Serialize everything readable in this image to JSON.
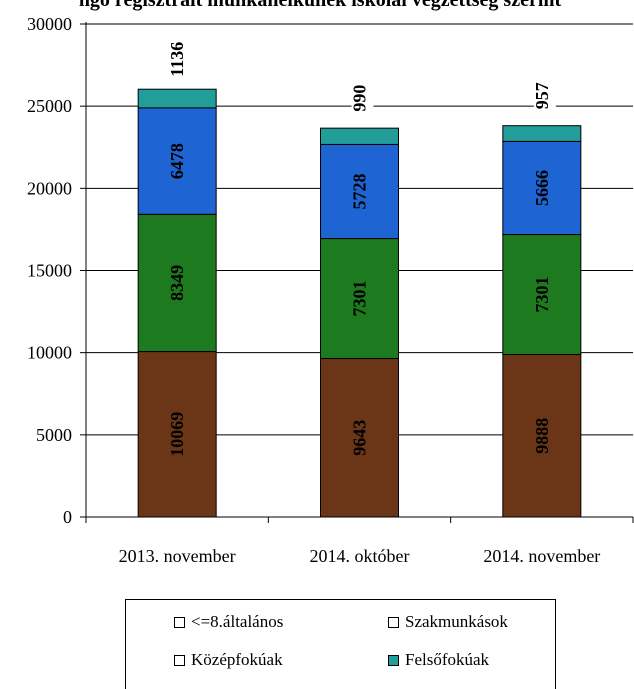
{
  "chart_data": {
    "type": "bar",
    "stacked": true,
    "title": "ngo regisztrált munkanélküliek iskolai végzettség szerint",
    "categories": [
      "2013. november",
      "2014. október",
      "2014. november"
    ],
    "series": [
      {
        "name": "<=8.általános",
        "values": [
          10069,
          9643,
          9888
        ],
        "color": "#6b3517",
        "legend_swatch": "#ffffff"
      },
      {
        "name": "Szakmunkások",
        "values": [
          8349,
          7301,
          7301
        ],
        "color": "#1e7a1e",
        "legend_swatch": "#ffffff"
      },
      {
        "name": "Középfokúak",
        "values": [
          6478,
          5728,
          5666
        ],
        "color": "#1e64d2",
        "legend_swatch": "#ffffff"
      },
      {
        "name": "Felsőfokúak",
        "values": [
          1136,
          990,
          957
        ],
        "color": "#229d9a",
        "legend_swatch": "#229d9a"
      }
    ],
    "y_ticks": [
      0,
      5000,
      10000,
      15000,
      20000,
      25000,
      30000
    ],
    "ylim": [
      0,
      30000
    ],
    "grid": true,
    "legend_position": "bottom"
  }
}
